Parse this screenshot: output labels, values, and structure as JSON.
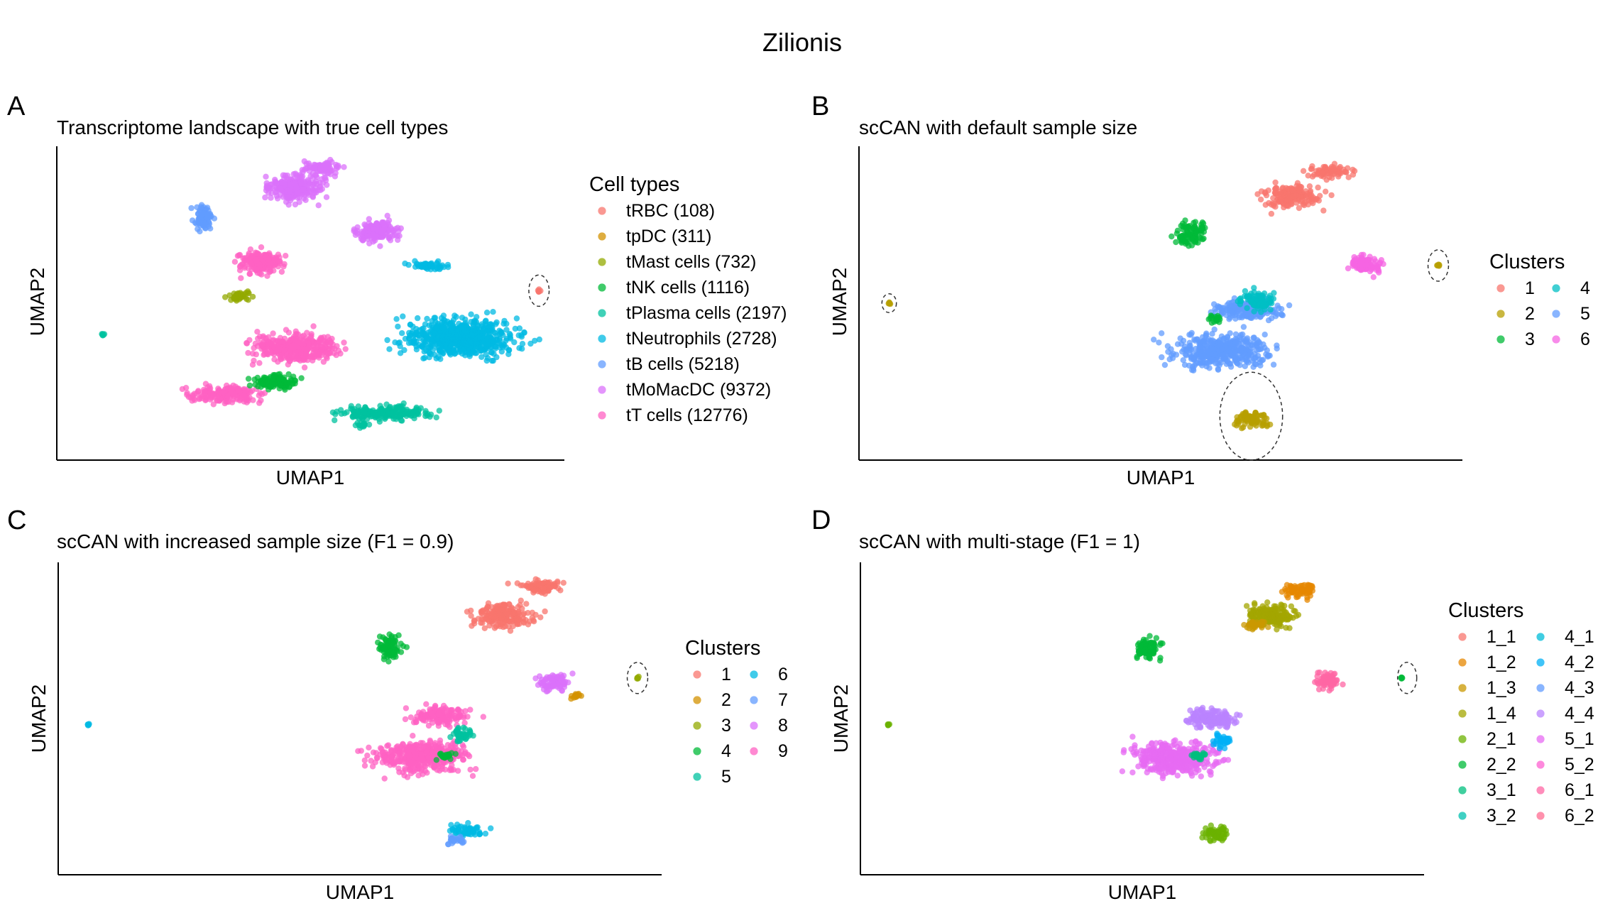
{
  "title": "Zilionis",
  "chart_data": [
    {
      "type": "scatter",
      "panel": "A",
      "title": "Transcriptome landscape with true cell types",
      "xlabel": "UMAP1",
      "ylabel": "UMAP2",
      "legend": {
        "title": "Cell types",
        "placement": "right",
        "columns": 1,
        "entries": [
          {
            "label": "tRBC (108)",
            "color": "#F8766D"
          },
          {
            "label": "tpDC (311)",
            "color": "#D39200"
          },
          {
            "label": "tMast cells (732)",
            "color": "#93AA00"
          },
          {
            "label": "tNK cells (1116)",
            "color": "#00BA38"
          },
          {
            "label": "tPlasma cells (2197)",
            "color": "#00C19F"
          },
          {
            "label": "tNeutrophils (2728)",
            "color": "#00B9E3"
          },
          {
            "label": "tB cells (5218)",
            "color": "#619CFF"
          },
          {
            "label": "tMoMacDC (9372)",
            "color": "#DB72FB"
          },
          {
            "label": "tT cells (12776)",
            "color": "#FF61C3"
          }
        ]
      }
    },
    {
      "type": "scatter",
      "panel": "B",
      "title": "scCAN with default sample size",
      "xlabel": "UMAP1",
      "ylabel": "UMAP2",
      "legend": {
        "title": "Clusters",
        "placement": "right",
        "columns": 2,
        "entries": [
          {
            "label": "1",
            "color": "#F8766D"
          },
          {
            "label": "2",
            "color": "#B79F00"
          },
          {
            "label": "3",
            "color": "#00BA38"
          },
          {
            "label": "4",
            "color": "#00BFC4"
          },
          {
            "label": "5",
            "color": "#619CFF"
          },
          {
            "label": "6",
            "color": "#F564E3"
          }
        ]
      }
    },
    {
      "type": "scatter",
      "panel": "C",
      "title": "scCAN with increased sample size (F1 = 0.9)",
      "xlabel": "UMAP1",
      "ylabel": "UMAP2",
      "legend": {
        "title": "Clusters",
        "placement": "right",
        "columns": 2,
        "entries": [
          {
            "label": "1",
            "color": "#F8766D"
          },
          {
            "label": "2",
            "color": "#D39200"
          },
          {
            "label": "3",
            "color": "#93AA00"
          },
          {
            "label": "4",
            "color": "#00BA38"
          },
          {
            "label": "5",
            "color": "#00C19F"
          },
          {
            "label": "6",
            "color": "#00B9E3"
          },
          {
            "label": "7",
            "color": "#619CFF"
          },
          {
            "label": "8",
            "color": "#DB72FB"
          },
          {
            "label": "9",
            "color": "#FF61C3"
          }
        ]
      }
    },
    {
      "type": "scatter",
      "panel": "D",
      "title": "scCAN with multi-stage (F1 = 1)",
      "xlabel": "UMAP1",
      "ylabel": "UMAP2",
      "legend": {
        "title": "Clusters",
        "placement": "right",
        "columns": 2,
        "entries": [
          {
            "label": "1_1",
            "color": "#F8766D"
          },
          {
            "label": "1_2",
            "color": "#E58700"
          },
          {
            "label": "1_3",
            "color": "#C99800"
          },
          {
            "label": "1_4",
            "color": "#A3A500"
          },
          {
            "label": "2_1",
            "color": "#6BB100"
          },
          {
            "label": "2_2",
            "color": "#00BA38"
          },
          {
            "label": "3_1",
            "color": "#00BF7D"
          },
          {
            "label": "3_2",
            "color": "#00C0AF"
          },
          {
            "label": "4_1",
            "color": "#00BCD8"
          },
          {
            "label": "4_2",
            "color": "#00B0F6"
          },
          {
            "label": "4_3",
            "color": "#619CFF"
          },
          {
            "label": "4_4",
            "color": "#B983FF"
          },
          {
            "label": "5_1",
            "color": "#E76BF3"
          },
          {
            "label": "5_2",
            "color": "#FD61D1"
          },
          {
            "label": "6_1",
            "color": "#FF67A4"
          },
          {
            "label": "6_2",
            "color": "#FF6C91"
          }
        ]
      }
    }
  ]
}
